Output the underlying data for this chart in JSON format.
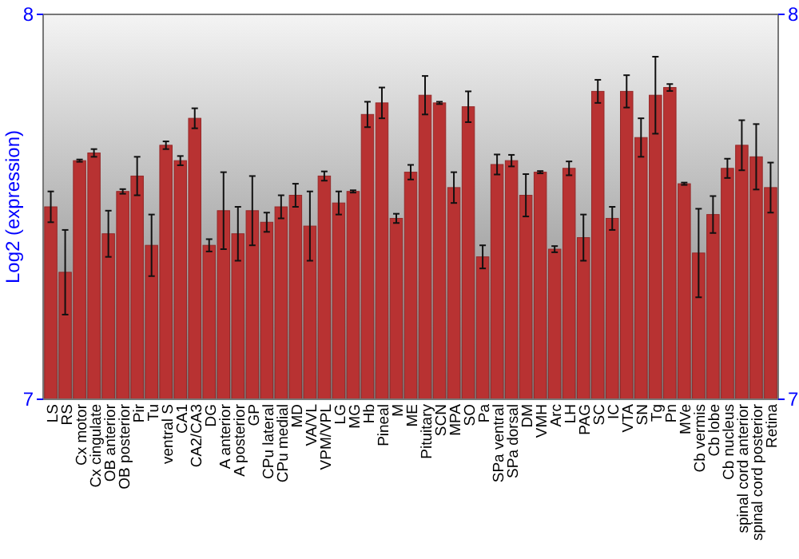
{
  "chart_data": {
    "type": "bar",
    "ylabel": "Log2 (expression)",
    "categories": [
      "LS",
      "RS",
      "Cx motor",
      "Cx cingulate",
      "OB anterior",
      "OB posterior",
      "Pir",
      "Tu",
      "ventral S",
      "CA1",
      "CA2/CA3",
      "DG",
      "A anterior",
      "A posterior",
      "GP",
      "CPu lateral",
      "CPu medial",
      "MD",
      "VA/VL",
      "VPM/VPL",
      "LG",
      "MG",
      "Hb",
      "Pineal",
      "M",
      "ME",
      "Pituitary",
      "SCN",
      "MPA",
      "SO",
      "Pa",
      "SPa ventral",
      "SPa dorsal",
      "DM",
      "VMH",
      "Arc",
      "LH",
      "PAG",
      "SC",
      "IC",
      "VTA",
      "SN",
      "Tg",
      "Pn",
      "MVe",
      "Cb vermis",
      "Cb lobe",
      "Cb nucleus",
      "spinal cord anterior",
      "spinal cord posterior",
      "Retina"
    ],
    "values": [
      7.5,
      7.33,
      7.62,
      7.64,
      7.43,
      7.54,
      7.58,
      7.4,
      7.66,
      7.62,
      7.73,
      7.4,
      7.49,
      7.43,
      7.49,
      7.46,
      7.5,
      7.53,
      7.45,
      7.58,
      7.51,
      7.54,
      7.74,
      7.77,
      7.47,
      7.59,
      7.79,
      7.77,
      7.55,
      7.76,
      7.37,
      7.61,
      7.62,
      7.53,
      7.59,
      7.39,
      7.6,
      7.42,
      7.8,
      7.47,
      7.8,
      7.68,
      7.79,
      7.81,
      7.56,
      7.38,
      7.48,
      7.6,
      7.66,
      7.63,
      7.55
    ],
    "errors": [
      0.04,
      0.11,
      0.003,
      0.01,
      0.06,
      0.006,
      0.05,
      0.08,
      0.01,
      0.012,
      0.026,
      0.016,
      0.1,
      0.07,
      0.09,
      0.025,
      0.03,
      0.03,
      0.09,
      0.012,
      0.03,
      0.003,
      0.033,
      0.04,
      0.012,
      0.019,
      0.05,
      0.003,
      0.04,
      0.04,
      0.03,
      0.026,
      0.015,
      0.055,
      0.003,
      0.008,
      0.018,
      0.06,
      0.03,
      0.03,
      0.042,
      0.05,
      0.1,
      0.009,
      0.003,
      0.115,
      0.048,
      0.025,
      0.065,
      0.085,
      0.065
    ],
    "color": "#b83232",
    "ylim": [
      7,
      8
    ],
    "yticks": [
      7,
      8
    ],
    "y2lim": [
      7,
      8
    ],
    "y2ticks": [
      7,
      8
    ]
  }
}
